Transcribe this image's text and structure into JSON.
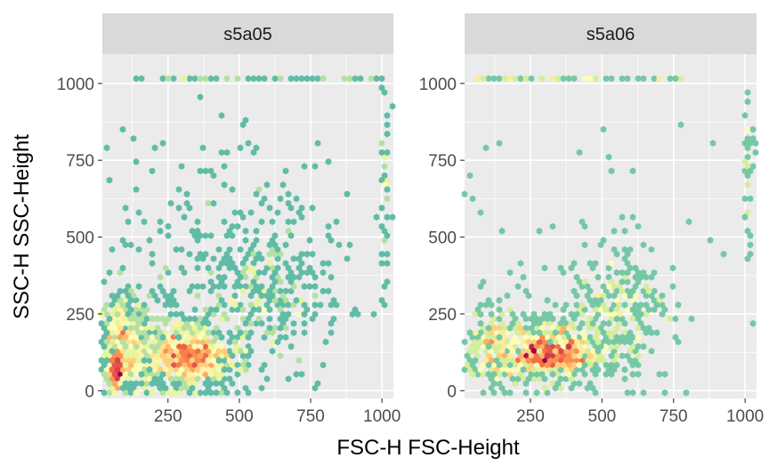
{
  "chart_data": {
    "type": "hexbin",
    "xlabel": "FSC-H FSC-Height",
    "ylabel": "SSC-H SSC-Height",
    "xlim": [
      20,
      1040
    ],
    "ylim": [
      -25,
      1095
    ],
    "x_ticks": [
      250,
      500,
      750,
      1000
    ],
    "y_ticks": [
      0,
      250,
      500,
      750,
      1000
    ],
    "grid": true,
    "color_scale": [
      "#5e4fa2",
      "#3288bd",
      "#66c2a5",
      "#abdda4",
      "#e6f598",
      "#ffffbf",
      "#fee08b",
      "#fdae61",
      "#f46d43",
      "#d53e4f",
      "#9e0142"
    ],
    "panels": [
      {
        "strip": "s5a05",
        "clusters": [
          {
            "x": 90,
            "y": 170,
            "sx": 45,
            "sy": 85,
            "n": 360
          },
          {
            "x": 280,
            "y": 120,
            "sx": 140,
            "sy": 70,
            "n": 620
          },
          {
            "x": 600,
            "y": 330,
            "sx": 110,
            "sy": 110,
            "n": 260
          },
          {
            "x": 400,
            "y": 420,
            "sx": 250,
            "sy": 230,
            "n": 220
          },
          {
            "x": 1010,
            "y": 700,
            "sx": 8,
            "sy": 160,
            "n": 45
          }
        ],
        "dense_core": [
          {
            "x": 70,
            "y": 60,
            "sx": 14,
            "sy": 30,
            "n": 30
          },
          {
            "x": 320,
            "y": 110,
            "sx": 70,
            "sy": 40,
            "n": 90
          }
        ],
        "saturated_row": {
          "y": 1023,
          "x_from": 80,
          "x_to": 1020,
          "n": 45
        }
      },
      {
        "strip": "s5a06",
        "clusters": [
          {
            "x": 110,
            "y": 150,
            "sx": 50,
            "sy": 70,
            "n": 180
          },
          {
            "x": 300,
            "y": 130,
            "sx": 130,
            "sy": 60,
            "n": 420
          },
          {
            "x": 560,
            "y": 260,
            "sx": 90,
            "sy": 90,
            "n": 220
          },
          {
            "x": 480,
            "y": 380,
            "sx": 260,
            "sy": 260,
            "n": 90
          },
          {
            "x": 1010,
            "y": 720,
            "sx": 8,
            "sy": 140,
            "n": 35
          }
        ],
        "dense_core": [
          {
            "x": 320,
            "y": 120,
            "sx": 80,
            "sy": 35,
            "n": 70
          }
        ],
        "saturated_row": {
          "y": 1023,
          "x_from": 50,
          "x_to": 820,
          "n": 55
        }
      }
    ]
  }
}
